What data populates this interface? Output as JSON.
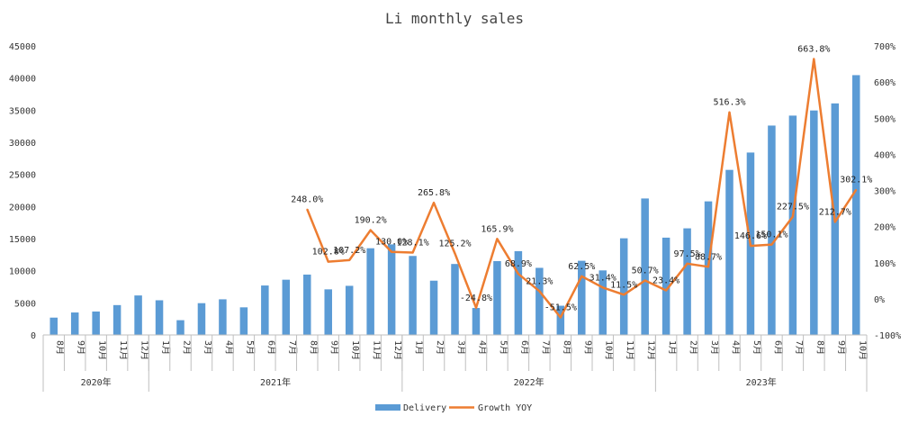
{
  "chart_data": {
    "type": "bar+line",
    "title": "Li monthly sales",
    "colors": {
      "bar": "#5b9bd5",
      "line": "#ed7d31",
      "grid": "#bfbfbf"
    },
    "legend": {
      "position": "bottom",
      "items": [
        "Delivery",
        "Growth YOY"
      ]
    },
    "y_left": {
      "min": 0,
      "max": 45000,
      "step": 5000,
      "ticks": [
        "0",
        "5000",
        "10000",
        "15000",
        "20000",
        "25000",
        "30000",
        "35000",
        "40000",
        "45000"
      ]
    },
    "y_right": {
      "min": -100,
      "max": 700,
      "step": 100,
      "ticks": [
        "-100%",
        "0%",
        "100%",
        "200%",
        "300%",
        "400%",
        "500%",
        "600%",
        "700%"
      ]
    },
    "years": [
      {
        "label": "2020年",
        "count": 5
      },
      {
        "label": "2021年",
        "count": 12
      },
      {
        "label": "2022年",
        "count": 12
      },
      {
        "label": "2023年",
        "count": 10
      }
    ],
    "categories": [
      "8月",
      "9月",
      "10月",
      "11月",
      "12月",
      "1月",
      "2月",
      "3月",
      "4月",
      "5月",
      "6月",
      "7月",
      "8月",
      "9月",
      "10月",
      "11月",
      "12月",
      "1月",
      "2月",
      "3月",
      "4月",
      "5月",
      "6月",
      "7月",
      "8月",
      "9月",
      "10月",
      "11月",
      "12月",
      "1月",
      "2月",
      "3月",
      "4月",
      "5月",
      "6月",
      "7月",
      "8月",
      "9月",
      "10月"
    ],
    "series": [
      {
        "name": "Delivery",
        "type": "bar",
        "values": [
          2700,
          3500,
          3650,
          4650,
          6150,
          5400,
          2300,
          4950,
          5550,
          4300,
          7700,
          8600,
          9400,
          7100,
          7650,
          13500,
          14100,
          12300,
          8450,
          11050,
          4200,
          11500,
          13050,
          10450,
          4550,
          11550,
          10050,
          15050,
          21250,
          15150,
          16600,
          20800,
          25700,
          28400,
          32600,
          34150,
          34950,
          36050,
          40450
        ]
      },
      {
        "name": "Growth YOY",
        "type": "line",
        "values": [
          null,
          null,
          null,
          null,
          null,
          null,
          null,
          null,
          null,
          null,
          null,
          null,
          248.0,
          102.8,
          107.2,
          190.2,
          130.0,
          128.1,
          265.8,
          125.2,
          -24.8,
          165.9,
          68.9,
          21.3,
          -51.5,
          62.5,
          31.4,
          11.5,
          50.7,
          23.4,
          97.5,
          88.7,
          516.3,
          146.6,
          150.1,
          227.5,
          663.8,
          212.7,
          302.1
        ],
        "labels": [
          "",
          "",
          "",
          "",
          "",
          "",
          "",
          "",
          "",
          "",
          "",
          "",
          "248.0%",
          "102.8%",
          "107.2%",
          "190.2%",
          "130.0%",
          "128.1%",
          "265.8%",
          "125.2%",
          "-24.8%",
          "165.9%",
          "68.9%",
          "21.3%",
          "-51.5%",
          "62.5%",
          "31.4%",
          "11.5%",
          "50.7%",
          "23.4%",
          "97.5%",
          "88.7%",
          "516.3%",
          "146.6%",
          "150.1%",
          "227.5%",
          "663.8%",
          "212.7%",
          "302.1%"
        ]
      }
    ]
  }
}
